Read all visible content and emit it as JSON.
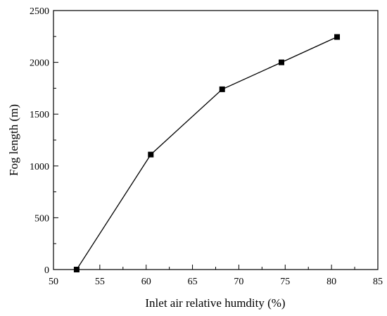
{
  "chart_data": {
    "type": "line",
    "title": "",
    "xlabel": "Inlet air relative humdity (%)",
    "ylabel": "Fog length (m)",
    "xlim": [
      50,
      85
    ],
    "ylim": [
      0,
      2500
    ],
    "xticks": [
      "50",
      "55",
      "60",
      "65",
      "70",
      "75",
      "80",
      "85"
    ],
    "yticks": [
      "0",
      "500",
      "1000",
      "1500",
      "2000",
      "2500"
    ],
    "grid": false,
    "legend": "none",
    "series": [
      {
        "marker": "square",
        "color": "#000000",
        "x": [
          52.5,
          60.5,
          68.2,
          74.6,
          80.6
        ],
        "y": [
          0,
          1110,
          1740,
          2000,
          2245
        ]
      }
    ]
  }
}
